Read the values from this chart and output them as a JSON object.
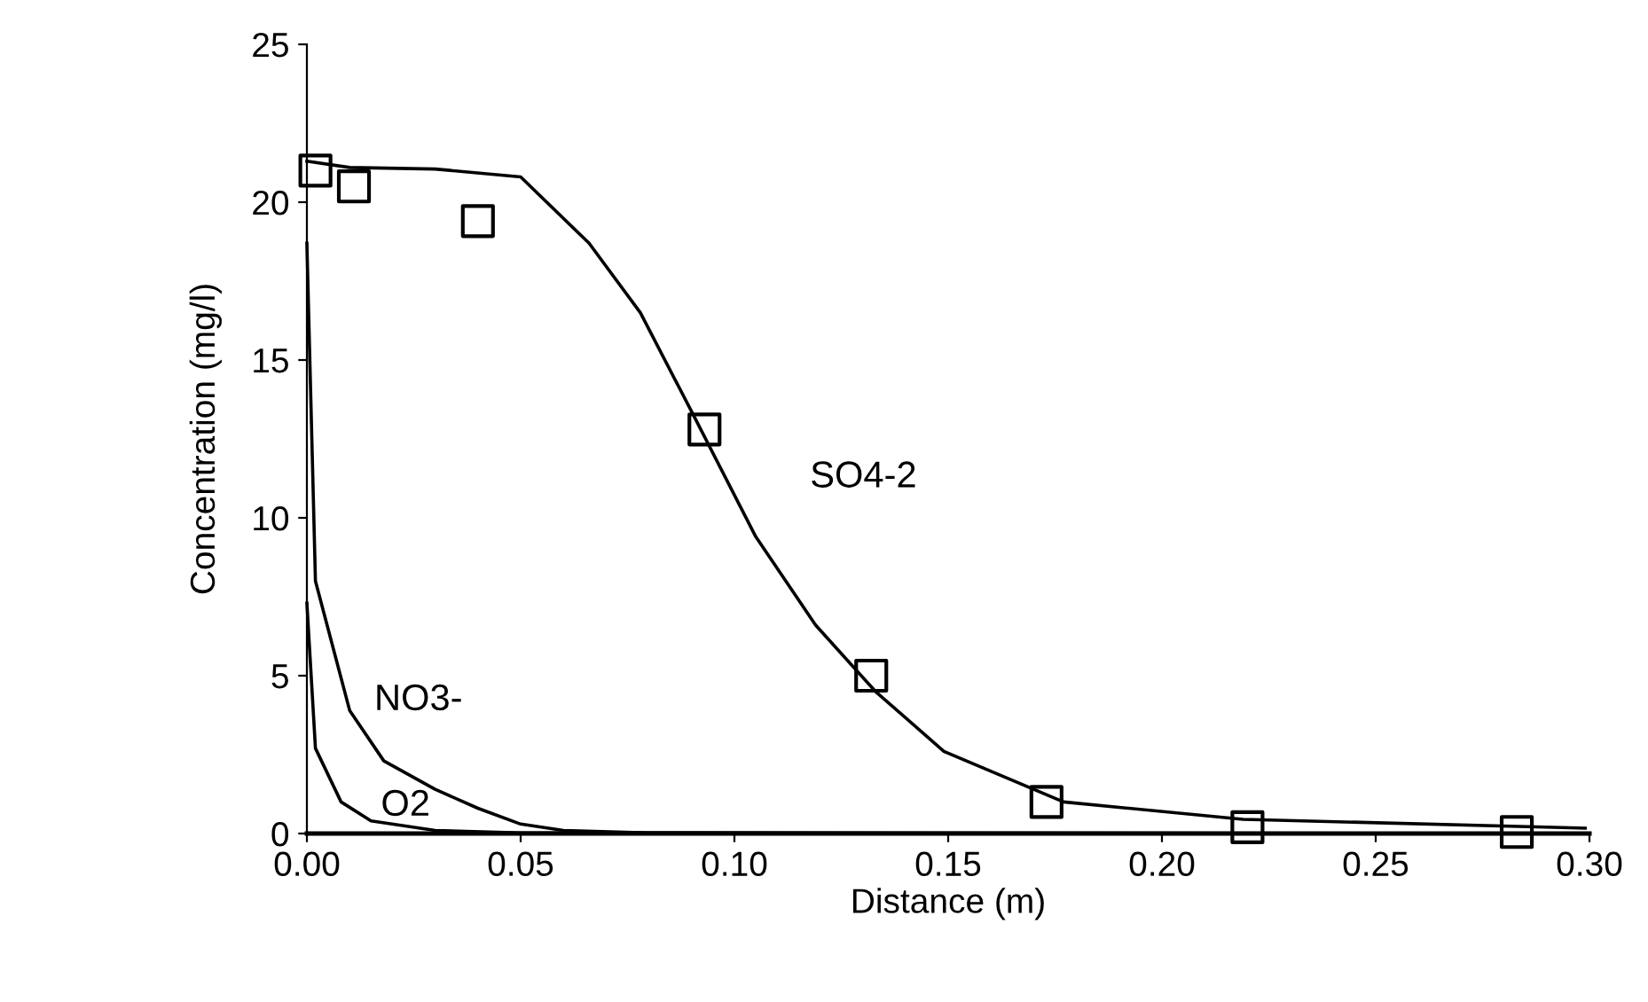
{
  "chart_data": {
    "type": "line",
    "xlabel": "Distance (m)",
    "ylabel": "Concentration (mg/l)",
    "xlim": [
      0,
      0.3
    ],
    "ylim": [
      0,
      25
    ],
    "xticks": [
      {
        "value": 0,
        "label": "0.00"
      },
      {
        "value": 0.05,
        "label": "0.05"
      },
      {
        "value": 0.1,
        "label": "0.10"
      },
      {
        "value": 0.15,
        "label": "0.15"
      },
      {
        "value": 0.2,
        "label": "0.20"
      },
      {
        "value": 0.25,
        "label": "0.25"
      },
      {
        "value": 0.3,
        "label": "0.30"
      }
    ],
    "yticks": [
      0,
      5,
      10,
      15,
      20,
      25
    ],
    "grid": false,
    "legend": false,
    "series": [
      {
        "name": "SO4-2",
        "color": "#000000",
        "marker": "none",
        "x": [
          0,
          0.01,
          0.03,
          0.05,
          0.066,
          0.078,
          0.091,
          0.105,
          0.119,
          0.133,
          0.149,
          0.177,
          0.219,
          0.299
        ],
        "values": [
          21.3,
          21.1,
          21.05,
          20.8,
          18.7,
          16.5,
          13.1,
          9.4,
          6.6,
          4.5,
          2.6,
          1.0,
          0.45,
          0.17
        ]
      },
      {
        "name": "NO3-",
        "color": "#000000",
        "marker": "none",
        "x": [
          0,
          0.002,
          0.01,
          0.018,
          0.03,
          0.04,
          0.05,
          0.06,
          0.08,
          0.297
        ],
        "values": [
          18.7,
          8,
          3.9,
          2.3,
          1.4,
          0.8,
          0.3,
          0.1,
          0.02,
          0
        ]
      },
      {
        "name": "O2",
        "color": "#000000",
        "marker": "none",
        "x": [
          0,
          0.002,
          0.008,
          0.015,
          0.03,
          0.05,
          0.297
        ],
        "values": [
          7.3,
          2.7,
          1.0,
          0.4,
          0.1,
          0.02,
          0
        ]
      },
      {
        "type": "scatter",
        "color": "#000000",
        "marker": "square",
        "x": [
          0.002,
          0.011,
          0.04,
          0.093,
          0.132,
          0.173,
          0.22,
          0.283
        ],
        "values": [
          21.0,
          20.5,
          19.4,
          12.8,
          5.0,
          1.0,
          0.2,
          0.05
        ]
      }
    ]
  }
}
